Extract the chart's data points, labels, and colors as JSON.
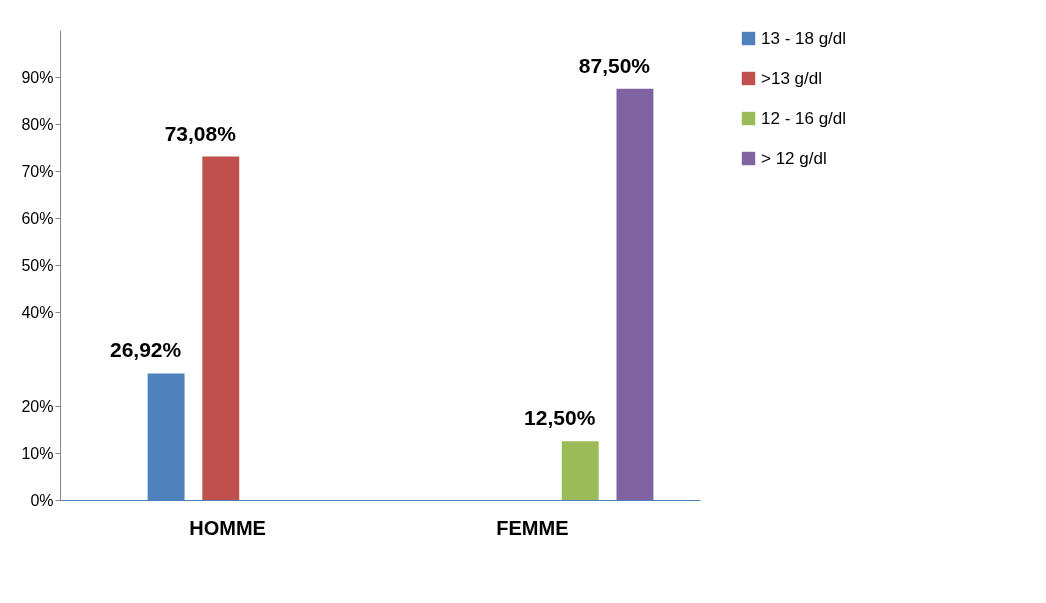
{
  "chart_data": {
    "type": "bar",
    "categories": [
      "HOMME",
      "FEMME"
    ],
    "series": [
      {
        "name": "13 - 18 g/dl",
        "color": "#4f81bd",
        "values": [
          26.92,
          null
        ],
        "value_labels": [
          "26,92%",
          null
        ]
      },
      {
        "name": ">13 g/dl",
        "color": "#c0504d",
        "values": [
          73.08,
          null
        ],
        "value_labels": [
          "73,08%",
          null
        ]
      },
      {
        "name": "12 - 16 g/dl",
        "color": "#9bbb59",
        "values": [
          null,
          12.5
        ],
        "value_labels": [
          null,
          "12,50%"
        ]
      },
      {
        "name": "> 12 g/dl",
        "color": "#8064a2",
        "values": [
          null,
          87.5
        ],
        "value_labels": [
          null,
          "87,50%"
        ]
      }
    ],
    "ylim": [
      0,
      100
    ],
    "yticks": [
      {
        "value": 0,
        "label": "0%"
      },
      {
        "value": 10,
        "label": "10%"
      },
      {
        "value": 20,
        "label": "20%"
      },
      {
        "value": 40,
        "label": "40%"
      },
      {
        "value": 50,
        "label": "50%"
      },
      {
        "value": 60,
        "label": "60%"
      },
      {
        "value": 70,
        "label": "70%"
      },
      {
        "value": 80,
        "label": "80%"
      },
      {
        "value": 90,
        "label": "90%"
      }
    ],
    "grid": false,
    "legend": "right"
  }
}
